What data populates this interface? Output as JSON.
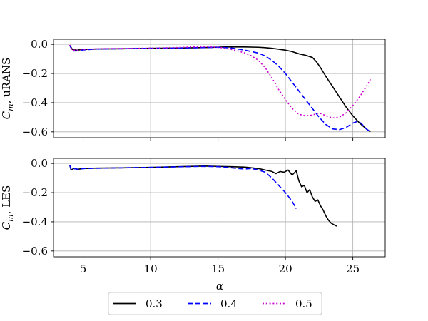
{
  "chart_data": {
    "type": "line",
    "shared_x": {
      "label": "α",
      "ticks": [
        5,
        10,
        15,
        20,
        25
      ],
      "lim": [
        2.8,
        27.4
      ]
    },
    "grid": true,
    "legend": {
      "placement": "bottom-center",
      "entries": [
        {
          "label": "0.3",
          "color": "#000000",
          "style": "solid"
        },
        {
          "label": "0.4",
          "color": "#0000ff",
          "style": "dashed"
        },
        {
          "label": "0.5",
          "color": "#cc00cc",
          "style": "dotted"
        }
      ]
    },
    "panels": [
      {
        "ylabel_main": "C",
        "ylabel_sub": "m",
        "ylabel_rest": ", uRANS",
        "ylim": [
          -0.64,
          0.035
        ],
        "yticks": [
          0.0,
          -0.2,
          -0.4,
          -0.6
        ],
        "ytick_labels": [
          "0.0",
          "−0.2",
          "−0.4",
          "−0.6"
        ],
        "series": [
          {
            "name": "0.3",
            "x": [
              4.0,
              4.2,
              4.5,
              5.0,
              6,
              8,
              10,
              12,
              14,
              15.5,
              17,
              18,
              18.5,
              19,
              19.5,
              20,
              20.5,
              21,
              21.5,
              22,
              22.3,
              22.6,
              23,
              23.5,
              24,
              24.5,
              25,
              25.5,
              26,
              26.3
            ],
            "y": [
              -0.005,
              -0.035,
              -0.04,
              -0.035,
              -0.032,
              -0.03,
              -0.027,
              -0.025,
              -0.022,
              -0.018,
              -0.018,
              -0.02,
              -0.023,
              -0.027,
              -0.033,
              -0.04,
              -0.05,
              -0.065,
              -0.075,
              -0.09,
              -0.12,
              -0.16,
              -0.22,
              -0.29,
              -0.36,
              -0.43,
              -0.49,
              -0.54,
              -0.58,
              -0.6
            ]
          },
          {
            "name": "0.4",
            "x": [
              4.0,
              4.2,
              4.5,
              5.0,
              6,
              8,
              10,
              12,
              14,
              15,
              15.5,
              16,
              17,
              17.5,
              18,
              18.5,
              19,
              19.5,
              20,
              20.5,
              21,
              21.5,
              22,
              22.5,
              23,
              23.5,
              24,
              24.5,
              25,
              25.3,
              25.6,
              26,
              26.3
            ],
            "y": [
              -0.005,
              -0.045,
              -0.045,
              -0.038,
              -0.032,
              -0.03,
              -0.027,
              -0.025,
              -0.022,
              -0.02,
              -0.022,
              -0.025,
              -0.04,
              -0.05,
              -0.06,
              -0.08,
              -0.11,
              -0.15,
              -0.2,
              -0.26,
              -0.32,
              -0.38,
              -0.44,
              -0.5,
              -0.55,
              -0.58,
              -0.585,
              -0.57,
              -0.54,
              -0.53,
              -0.54,
              -0.58,
              -0.6
            ]
          },
          {
            "name": "0.5",
            "x": [
              4.0,
              4.2,
              4.5,
              5.0,
              6,
              8,
              10,
              12,
              13,
              14,
              15,
              15.5,
              16,
              16.5,
              17,
              17.5,
              18,
              18.5,
              19,
              19.5,
              20,
              20.5,
              21,
              21.5,
              22,
              22.5,
              23,
              23.5,
              24,
              24.5,
              25,
              25.5,
              26,
              26.3
            ],
            "y": [
              -0.005,
              -0.04,
              -0.04,
              -0.035,
              -0.03,
              -0.028,
              -0.026,
              -0.022,
              -0.018,
              -0.016,
              -0.02,
              -0.026,
              -0.035,
              -0.045,
              -0.06,
              -0.08,
              -0.11,
              -0.16,
              -0.23,
              -0.31,
              -0.38,
              -0.44,
              -0.48,
              -0.49,
              -0.485,
              -0.47,
              -0.49,
              -0.505,
              -0.5,
              -0.47,
              -0.42,
              -0.36,
              -0.29,
              -0.24
            ]
          }
        ]
      },
      {
        "ylabel_main": "C",
        "ylabel_sub": "m",
        "ylabel_rest": ", LES",
        "ylim": [
          -0.64,
          0.035
        ],
        "yticks": [
          0.0,
          -0.2,
          -0.4,
          -0.6
        ],
        "ytick_labels": [
          "0.0",
          "−0.2",
          "−0.4",
          "−0.6"
        ],
        "series": [
          {
            "name": "0.3",
            "x": [
              4.0,
              4.1,
              4.3,
              4.6,
              5.0,
              6,
              8,
              10,
              12,
              14,
              15,
              16,
              17,
              17.5,
              18,
              18.5,
              19,
              19.3,
              19.6,
              19.9,
              20.2,
              20.5,
              20.8,
              21.0,
              21.2,
              21.4,
              21.6,
              21.8,
              22.0,
              22.2,
              22.4,
              22.6,
              22.8,
              23.0,
              23.2,
              23.4,
              23.6,
              23.8
            ],
            "y": [
              -0.01,
              -0.045,
              -0.035,
              -0.04,
              -0.035,
              -0.032,
              -0.03,
              -0.027,
              -0.022,
              -0.018,
              -0.02,
              -0.022,
              -0.025,
              -0.03,
              -0.035,
              -0.045,
              -0.055,
              -0.07,
              -0.055,
              -0.06,
              -0.045,
              -0.08,
              -0.05,
              -0.12,
              -0.16,
              -0.15,
              -0.2,
              -0.18,
              -0.23,
              -0.26,
              -0.25,
              -0.29,
              -0.32,
              -0.36,
              -0.39,
              -0.41,
              -0.42,
              -0.43
            ]
          },
          {
            "name": "0.4",
            "x": [
              4.0,
              4.1,
              4.3,
              4.6,
              5.0,
              6,
              8,
              10,
              12,
              14,
              15,
              15.5,
              16,
              16.5,
              17,
              17.5,
              18,
              18.5,
              19,
              19.5,
              20,
              20.5,
              20.8
            ],
            "y": [
              -0.01,
              -0.04,
              -0.035,
              -0.04,
              -0.035,
              -0.033,
              -0.03,
              -0.027,
              -0.023,
              -0.02,
              -0.022,
              -0.025,
              -0.03,
              -0.035,
              -0.038,
              -0.035,
              -0.045,
              -0.06,
              -0.1,
              -0.15,
              -0.2,
              -0.26,
              -0.31
            ]
          }
        ]
      }
    ]
  }
}
